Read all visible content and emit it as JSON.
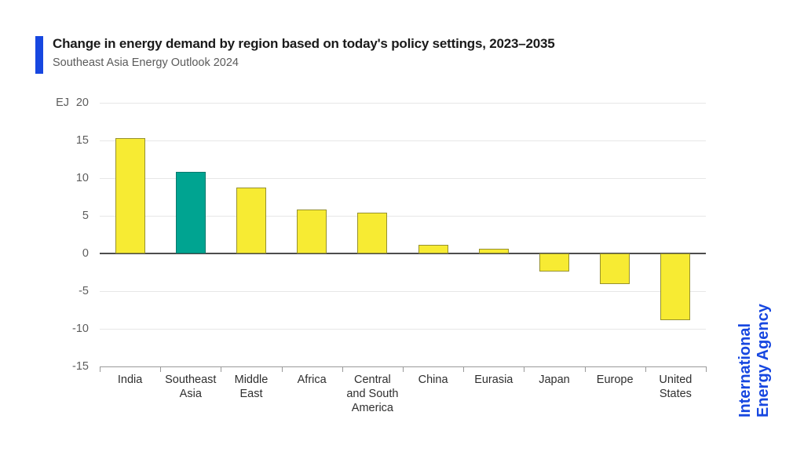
{
  "header": {
    "title": "Change in energy demand by region based on today's policy settings, 2023–2035",
    "subtitle": "Southeast Asia Energy Outlook 2024",
    "accent_color": "#1747E0"
  },
  "branding": {
    "line1": "International",
    "line2": "Energy Agency",
    "color": "#1747E0"
  },
  "chart_data": {
    "type": "bar",
    "title": "Change in energy demand by region based on today's policy settings, 2023–2035",
    "subtitle": "Southeast Asia Energy Outlook 2024",
    "unit": "EJ",
    "categories": [
      "India",
      "Southeast Asia",
      "Middle East",
      "Africa",
      "Central and South America",
      "China",
      "Eurasia",
      "Japan",
      "Europe",
      "United States"
    ],
    "category_lines": [
      [
        "India"
      ],
      [
        "Southeast",
        "Asia"
      ],
      [
        "Middle",
        "East"
      ],
      [
        "Africa"
      ],
      [
        "Central",
        "and South",
        "America"
      ],
      [
        "China"
      ],
      [
        "Eurasia"
      ],
      [
        "Japan"
      ],
      [
        "Europe"
      ],
      [
        "United",
        "States"
      ]
    ],
    "values": [
      15.3,
      10.8,
      8.7,
      5.8,
      5.4,
      1.1,
      0.6,
      -2.4,
      -4.1,
      -8.9
    ],
    "highlight_index": 1,
    "highlight_category": "Southeast Asia",
    "y_ticks": [
      20,
      15,
      10,
      5,
      0,
      -5,
      -10,
      -15
    ],
    "ylim": [
      -15,
      20
    ],
    "grid": true,
    "legend": "none",
    "colors": {
      "bar": "#F7EB33",
      "bar_border": "#96912F",
      "highlight": "#00A491",
      "highlight_border": "#0B7A6E",
      "grid_line": "#e7e7e7",
      "zero_line": "#4d4d4d",
      "axis_line": "#999999",
      "tick_text": "#5d5d5d",
      "category_text": "#2f2f2f"
    }
  }
}
